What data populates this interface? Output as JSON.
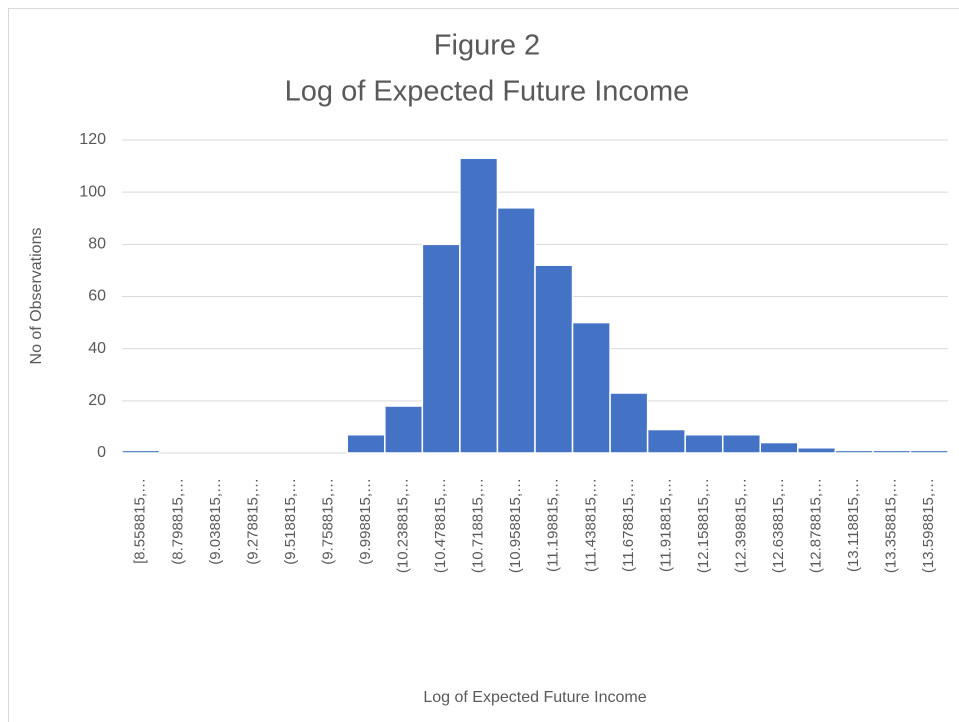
{
  "chart_data": {
    "type": "bar",
    "title": "Figure 2",
    "subtitle": "Log of Expected Future Income",
    "x_label": "Log of Expected Future Income",
    "y_label": "No of Observations",
    "categories": [
      "[8.558815,…",
      "(8.798815,…",
      "(9.038815,…",
      "(9.278815,…",
      "(9.518815,…",
      "(9.758815,…",
      "(9.998815,…",
      "(10.238815,…",
      "(10.478815,…",
      "(10.718815,…",
      "(10.958815,…",
      "(11.198815,…",
      "(11.438815,…",
      "(11.678815,…",
      "(11.918815,…",
      "(12.158815,…",
      "(12.398815,…",
      "(12.638815,…",
      "(12.878815,…",
      "(13.118815,…",
      "(13.358815,…",
      "(13.598815,…"
    ],
    "values": [
      1,
      0,
      0,
      0,
      0,
      0,
      7,
      18,
      80,
      113,
      94,
      72,
      50,
      23,
      9,
      7,
      7,
      4,
      2,
      1,
      1,
      1
    ],
    "color": "#4472c4",
    "ylim": [
      0,
      120
    ],
    "yticks": [
      0,
      20,
      40,
      60,
      80,
      100,
      120
    ],
    "grid": true
  }
}
